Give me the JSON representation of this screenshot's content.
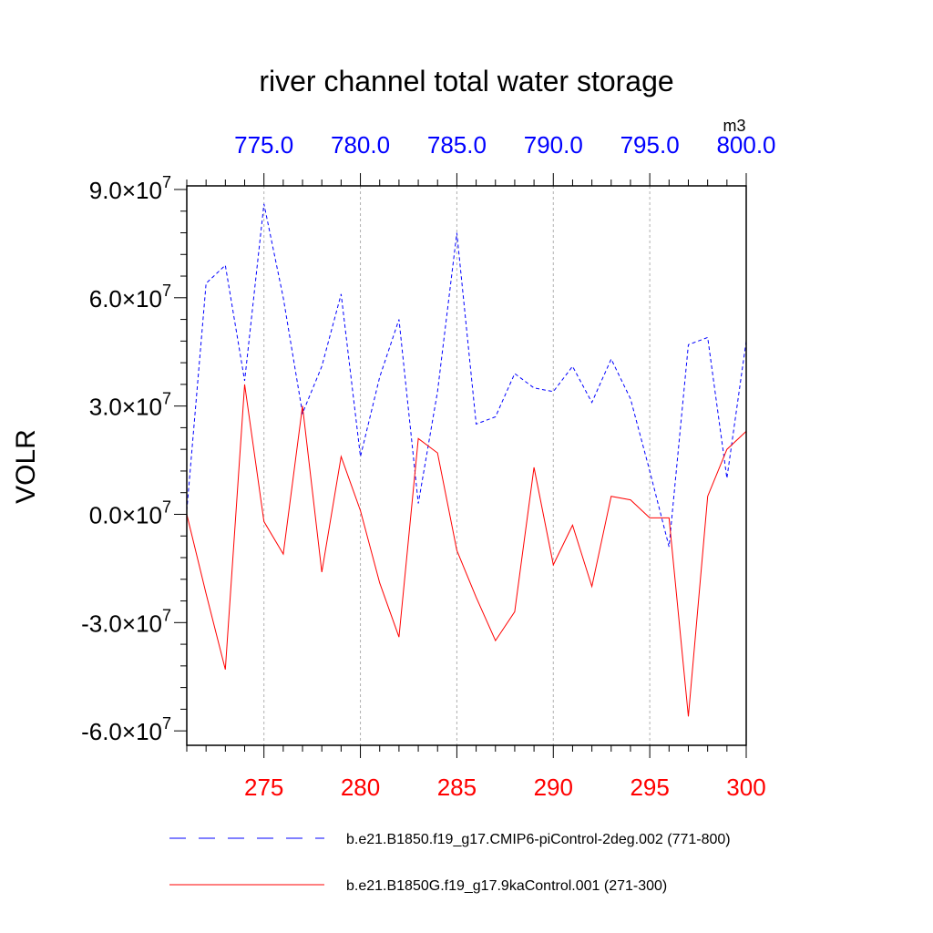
{
  "chart_data": {
    "type": "line",
    "title": "river channel total water storage",
    "units": "m3",
    "ylabel": "VOLR",
    "ylim": [
      -64000000,
      91000000
    ],
    "yticks": [
      {
        "value": -60000000,
        "mantissa": "-6.0",
        "exp": "7"
      },
      {
        "value": -30000000,
        "mantissa": "-3.0",
        "exp": "7"
      },
      {
        "value": 0,
        "mantissa": "0.0",
        "exp": "7"
      },
      {
        "value": 30000000,
        "mantissa": "3.0",
        "exp": "7"
      },
      {
        "value": 60000000,
        "mantissa": "6.0",
        "exp": "7"
      },
      {
        "value": 90000000,
        "mantissa": "9.0",
        "exp": "7"
      }
    ],
    "times_symbol": "×",
    "x_bottom": {
      "range": [
        271,
        300
      ],
      "ticks": [
        "275",
        "280",
        "285",
        "290",
        "295",
        "300"
      ],
      "color": "#ff0000"
    },
    "x_top": {
      "range": [
        771,
        800
      ],
      "ticks": [
        "775.0",
        "780.0",
        "785.0",
        "790.0",
        "795.0",
        "800.0"
      ],
      "color": "#0000ff"
    },
    "series": [
      {
        "name": "b.e21.B1850.f19_g17.CMIP6-piControl-2deg.002 (771-800)",
        "axis": "top",
        "color": "#0000ff",
        "style": "dashed",
        "x": [
          771,
          772,
          773,
          774,
          775,
          776,
          777,
          778,
          779,
          780,
          781,
          782,
          783,
          784,
          785,
          786,
          787,
          788,
          789,
          790,
          791,
          792,
          793,
          794,
          795,
          796,
          797,
          798,
          799,
          800
        ],
        "values": [
          1000000,
          64000000,
          69000000,
          37000000,
          86000000,
          60000000,
          28000000,
          41000000,
          61000000,
          16000000,
          38000000,
          54000000,
          3000000,
          34000000,
          78000000,
          25000000,
          27000000,
          39000000,
          35000000,
          34000000,
          41000000,
          31000000,
          43000000,
          32000000,
          12000000,
          -9000000,
          47000000,
          49000000,
          10000000,
          48000000
        ]
      },
      {
        "name": "b.e21.B1850G.f19_g17.9kaControl.001 (271-300)",
        "axis": "bottom",
        "color": "#ff0000",
        "style": "solid",
        "x": [
          271,
          272,
          273,
          274,
          275,
          276,
          277,
          278,
          279,
          280,
          281,
          282,
          283,
          284,
          285,
          286,
          287,
          288,
          289,
          290,
          291,
          292,
          293,
          294,
          295,
          296,
          297,
          298,
          299,
          300
        ],
        "values": [
          0,
          -22000000,
          -43000000,
          36000000,
          -2000000,
          -11000000,
          30000000,
          -16000000,
          16000000,
          1000000,
          -19000000,
          -34000000,
          21000000,
          17000000,
          -10000000,
          -23000000,
          -35000000,
          -27000000,
          13000000,
          -14000000,
          -3000000,
          -20000000,
          5000000,
          4000000,
          -1000000,
          -1000000,
          -56000000,
          5000000,
          18000000,
          23000000
        ]
      }
    ]
  }
}
